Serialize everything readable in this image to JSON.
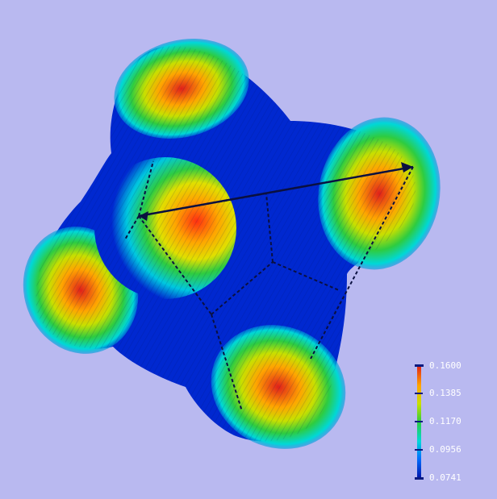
{
  "colormap": {
    "stops": [
      "#0012a8",
      "#0070ff",
      "#00d8d8",
      "#2ecc40",
      "#c8e000",
      "#ffa500",
      "#e0201a"
    ]
  },
  "colorbar": {
    "labels": [
      "0.1600",
      "0.1385",
      "0.1170",
      "0.0956",
      "0.0741"
    ],
    "frame_color": "#0a1a80"
  },
  "colors": {
    "background": "#b9b9f0",
    "low": "#0028d0",
    "wire": "#0a1040"
  }
}
